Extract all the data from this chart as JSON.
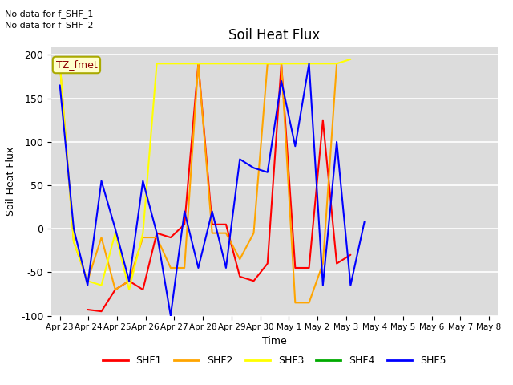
{
  "title": "Soil Heat Flux",
  "xlabel": "Time",
  "ylabel": "Soil Heat Flux",
  "note1": "No data for f_SHF_1",
  "note2": "No data for f_SHF_2",
  "tz_label": "TZ_fmet",
  "ylim": [
    -100,
    210
  ],
  "yticks": [
    -100,
    -50,
    0,
    50,
    100,
    150,
    200
  ],
  "x_labels": [
    "Apr 23",
    "Apr 24",
    "Apr 25",
    "Apr 26",
    "Apr 27",
    "Apr 28",
    "Apr 29",
    "Apr 30",
    "May 1",
    "May 2",
    "May 3",
    "May 4",
    "May 5",
    "May 6",
    "May 7",
    "May 8"
  ],
  "colors": {
    "SHF1": "#FF0000",
    "SHF2": "#FFA500",
    "SHF3": "#FFFF00",
    "SHF4": "#00AA00",
    "SHF5": "#0000FF"
  },
  "background_color": "#DCDCDC",
  "SHF1": [
    null,
    null,
    -93,
    -95,
    -70,
    -60,
    -70,
    -5,
    -10,
    5,
    190,
    5,
    5,
    -55,
    -60,
    -40,
    190,
    -45,
    -45,
    125,
    -40,
    -30,
    null,
    null,
    null,
    null,
    null,
    null,
    null,
    null,
    null,
    null
  ],
  "SHF2": [
    190,
    -15,
    -60,
    -10,
    -70,
    -60,
    -10,
    -10,
    -45,
    -45,
    190,
    -5,
    -5,
    -35,
    -5,
    190,
    190,
    -85,
    -85,
    -40,
    190,
    null,
    null,
    null,
    null,
    null,
    null,
    null,
    null,
    null,
    null,
    null
  ],
  "SHF3": [
    190,
    -15,
    -60,
    -65,
    -5,
    -70,
    -5,
    190,
    190,
    190,
    190,
    190,
    190,
    190,
    190,
    190,
    190,
    190,
    190,
    190,
    190,
    195,
    null,
    null,
    null,
    null,
    null,
    null,
    null,
    null,
    null,
    null
  ],
  "SHF4": [
    null,
    null,
    null,
    null,
    null,
    null,
    null,
    null,
    null,
    null,
    null,
    null,
    null,
    null,
    null,
    null,
    null,
    null,
    null,
    null,
    null,
    null,
    null,
    null,
    null,
    null,
    null,
    null,
    null,
    null,
    null,
    null
  ],
  "SHF5": [
    165,
    0,
    -65,
    55,
    0,
    -60,
    55,
    -5,
    -100,
    20,
    -45,
    20,
    -45,
    80,
    70,
    65,
    170,
    95,
    190,
    -65,
    100,
    -65,
    8,
    null,
    null,
    null,
    null,
    null,
    null,
    null,
    null,
    null
  ]
}
